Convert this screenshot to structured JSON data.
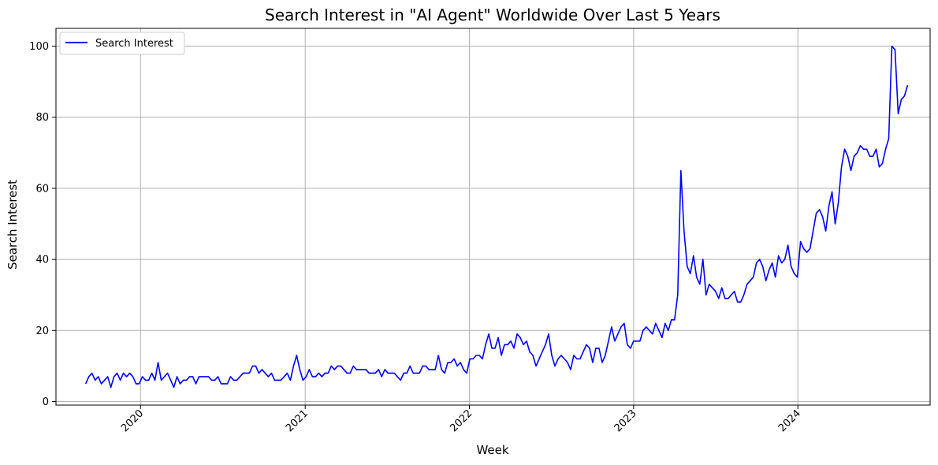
{
  "chart_data": {
    "type": "line",
    "title": "Search Interest in \"AI Agent\" Worldwide Over Last 5 Years",
    "xlabel": "Week",
    "ylabel": "Search Interest",
    "x_range": [
      "2019-06-27",
      "2024-10-21"
    ],
    "ylim": [
      -1,
      105
    ],
    "x_ticks": [
      {
        "date": "2020-01-01",
        "label": "2020"
      },
      {
        "date": "2021-01-01",
        "label": "2021"
      },
      {
        "date": "2022-01-01",
        "label": "2022"
      },
      {
        "date": "2023-01-01",
        "label": "2023"
      },
      {
        "date": "2024-01-01",
        "label": "2024"
      }
    ],
    "y_ticks": [
      0,
      20,
      40,
      60,
      80,
      100
    ],
    "grid": true,
    "legend_position": "top-left",
    "colors": {
      "series": "#0000ff",
      "grid": "#b0b0b0"
    },
    "series": [
      {
        "name": "Search Interest",
        "start_date": "2019-09-01",
        "values": [
          5,
          7,
          8,
          6,
          7,
          5,
          6,
          7,
          4,
          7,
          8,
          6,
          8,
          7,
          8,
          7,
          5,
          5,
          7,
          6,
          6,
          8,
          6,
          11,
          6,
          7,
          8,
          6,
          4,
          7,
          5,
          6,
          6,
          7,
          7,
          5,
          7,
          7,
          7,
          7,
          6,
          6,
          7,
          5,
          5,
          5,
          7,
          6,
          6,
          7,
          8,
          8,
          8,
          10,
          10,
          8,
          9,
          8,
          7,
          8,
          6,
          6,
          6,
          7,
          8,
          6,
          10,
          13,
          9,
          6,
          7,
          9,
          7,
          7,
          8,
          7,
          8,
          8,
          10,
          9,
          10,
          10,
          9,
          8,
          8,
          10,
          9,
          9,
          9,
          9,
          8,
          8,
          8,
          9,
          7,
          9,
          8,
          8,
          8,
          7,
          6,
          8,
          8,
          10,
          8,
          8,
          8,
          10,
          10,
          9,
          9,
          9,
          13,
          9,
          8,
          11,
          11,
          12,
          10,
          11,
          9,
          8,
          12,
          12,
          13,
          13,
          12,
          16,
          19,
          15,
          15,
          18,
          13,
          16,
          16,
          17,
          15,
          19,
          18,
          16,
          17,
          14,
          13,
          10,
          12,
          14,
          16,
          19,
          13,
          10,
          12,
          13,
          12,
          11,
          9,
          13,
          12,
          12,
          14,
          16,
          15,
          11,
          15,
          15,
          11,
          13,
          17,
          21,
          17,
          19,
          21,
          22,
          16,
          15,
          17,
          17,
          17,
          20,
          21,
          20,
          19,
          22,
          20,
          18,
          22,
          20,
          23,
          23,
          30,
          65,
          48,
          38,
          36,
          41,
          35,
          33,
          40,
          30,
          33,
          32,
          31,
          29,
          32,
          29,
          29,
          30,
          31,
          28,
          28,
          30,
          33,
          34,
          35,
          39,
          40,
          38,
          34,
          37,
          39,
          35,
          41,
          39,
          40,
          44,
          38,
          36,
          35,
          45,
          43,
          42,
          43,
          48,
          53,
          54,
          52,
          48,
          55,
          59,
          50,
          56,
          66,
          71,
          69,
          65,
          69,
          70,
          72,
          71,
          71,
          69,
          69,
          71,
          66,
          67,
          71,
          74,
          100,
          99,
          81,
          85,
          86,
          89
        ]
      }
    ]
  }
}
